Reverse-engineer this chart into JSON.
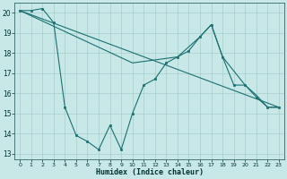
{
  "xlabel": "Humidex (Indice chaleur)",
  "bg_color": "#c8e8e8",
  "grid_color": "#a8cccc",
  "line_color": "#1a7070",
  "xlim": [
    -0.5,
    23.5
  ],
  "ylim": [
    12.7,
    20.5
  ],
  "xticks": [
    0,
    1,
    2,
    3,
    4,
    5,
    6,
    7,
    8,
    9,
    10,
    11,
    12,
    13,
    14,
    15,
    16,
    17,
    18,
    19,
    20,
    21,
    22,
    23
  ],
  "yticks": [
    13,
    14,
    15,
    16,
    17,
    18,
    19,
    20
  ],
  "line1_x": [
    0,
    1,
    2,
    3,
    4,
    5,
    6,
    7,
    8,
    9,
    10,
    11,
    12,
    13,
    14,
    15,
    16,
    17,
    18,
    19,
    20,
    21,
    22,
    23
  ],
  "line1_y": [
    20.1,
    20.1,
    20.2,
    19.5,
    15.3,
    13.9,
    13.6,
    13.2,
    14.4,
    13.2,
    15.0,
    16.4,
    16.7,
    17.5,
    17.8,
    18.1,
    18.8,
    19.4,
    17.8,
    16.4,
    16.4,
    15.8,
    15.3,
    15.3
  ],
  "line2_x": [
    0,
    23
  ],
  "line2_y": [
    20.1,
    15.3
  ],
  "line3_x": [
    0,
    10,
    14,
    16,
    17,
    18,
    19,
    20,
    21,
    22,
    23
  ],
  "line3_y": [
    20.1,
    17.5,
    17.8,
    18.8,
    19.4,
    17.8,
    17.1,
    16.4,
    15.9,
    15.3,
    15.3
  ]
}
